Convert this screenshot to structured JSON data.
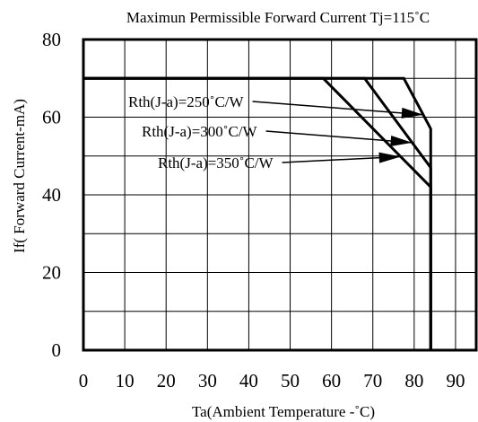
{
  "chart_data": {
    "type": "line",
    "title": "Maximun Permissible Forward Current Tj=115˚C",
    "xlabel": "Ta(Ambient Temperature -˚C)",
    "ylabel": "If( Forward Current-mA)",
    "xlim": [
      0,
      95
    ],
    "ylim": [
      0,
      80
    ],
    "xticks": [
      "0",
      "10",
      "20",
      "30",
      "40",
      "50",
      "60",
      "70",
      "80",
      "90"
    ],
    "yticks": [
      "0",
      "20",
      "40",
      "60",
      "80"
    ],
    "grid": true,
    "series": [
      {
        "name": "Rth(J-a)=250˚C/W",
        "x": [
          0,
          77.5,
          84,
          84
        ],
        "y": [
          70,
          70,
          57,
          0
        ]
      },
      {
        "name": "Rth(J-a)=300˚C/W",
        "x": [
          0,
          68,
          84,
          84
        ],
        "y": [
          70,
          70,
          47,
          0
        ]
      },
      {
        "name": "Rth(J-a)=350˚C/W",
        "x": [
          0,
          58,
          84,
          84
        ],
        "y": [
          70,
          70,
          42,
          0
        ]
      }
    ]
  }
}
